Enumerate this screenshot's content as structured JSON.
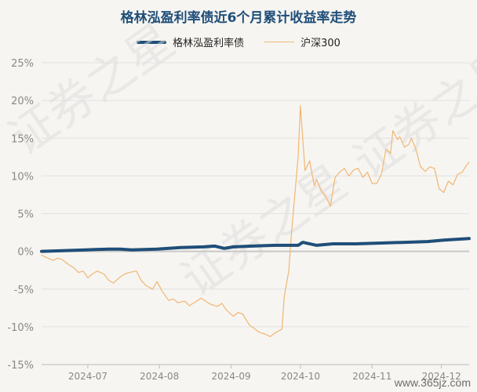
{
  "watermark": {
    "bg_text": "证券之星",
    "corner_text": "www.365jz.com"
  },
  "chart_data": {
    "type": "line",
    "title": "格林泓盈利率债近6个月累计收益率走势",
    "ylim": [
      -15,
      25
    ],
    "ytick_labels": [
      "25%",
      "20%",
      "15%",
      "10%",
      "5%",
      "0%",
      "-5%",
      "-10%",
      "-15%"
    ],
    "yticks": [
      25,
      20,
      15,
      10,
      5,
      0,
      -5,
      -10,
      -15
    ],
    "x_range": [
      "2024-06-11",
      "2024-12-13"
    ],
    "xtick_labels": [
      "2024-07",
      "2024-08",
      "2024-09",
      "2024-10",
      "2024-11",
      "2024-12"
    ],
    "xticks": [
      "2024-07-01",
      "2024-08-01",
      "2024-09-01",
      "2024-10-01",
      "2024-11-01",
      "2024-12-01"
    ],
    "grid": true,
    "legend_position": "top-center",
    "series": [
      {
        "name": "格林泓盈利率债",
        "color": "#1f4e79",
        "points": [
          [
            "2024-06-11",
            0.0
          ],
          [
            "2024-06-20",
            0.1
          ],
          [
            "2024-06-30",
            0.2
          ],
          [
            "2024-07-10",
            0.3
          ],
          [
            "2024-07-15",
            0.3
          ],
          [
            "2024-07-20",
            0.2
          ],
          [
            "2024-07-31",
            0.3
          ],
          [
            "2024-08-10",
            0.5
          ],
          [
            "2024-08-20",
            0.6
          ],
          [
            "2024-08-25",
            0.7
          ],
          [
            "2024-08-29",
            0.4
          ],
          [
            "2024-09-02",
            0.6
          ],
          [
            "2024-09-10",
            0.7
          ],
          [
            "2024-09-20",
            0.8
          ],
          [
            "2024-09-30",
            0.8
          ],
          [
            "2024-10-02",
            1.2
          ],
          [
            "2024-10-08",
            0.8
          ],
          [
            "2024-10-15",
            1.0
          ],
          [
            "2024-10-25",
            1.0
          ],
          [
            "2024-11-05",
            1.1
          ],
          [
            "2024-11-15",
            1.2
          ],
          [
            "2024-11-25",
            1.3
          ],
          [
            "2024-12-02",
            1.5
          ],
          [
            "2024-12-13",
            1.7
          ]
        ]
      },
      {
        "name": "沪深300",
        "color": "#f0b674",
        "points": [
          [
            "2024-06-11",
            -0.5
          ],
          [
            "2024-06-13",
            -0.8
          ],
          [
            "2024-06-16",
            -1.2
          ],
          [
            "2024-06-18",
            -0.9
          ],
          [
            "2024-06-20",
            -1.1
          ],
          [
            "2024-06-22",
            -1.6
          ],
          [
            "2024-06-25",
            -2.2
          ],
          [
            "2024-06-27",
            -2.8
          ],
          [
            "2024-06-29",
            -2.6
          ],
          [
            "2024-07-01",
            -3.5
          ],
          [
            "2024-07-03",
            -3.0
          ],
          [
            "2024-07-05",
            -2.6
          ],
          [
            "2024-07-08",
            -3.0
          ],
          [
            "2024-07-10",
            -3.8
          ],
          [
            "2024-07-12",
            -4.2
          ],
          [
            "2024-07-15",
            -3.4
          ],
          [
            "2024-07-17",
            -3.0
          ],
          [
            "2024-07-19",
            -2.8
          ],
          [
            "2024-07-22",
            -2.6
          ],
          [
            "2024-07-24",
            -3.8
          ],
          [
            "2024-07-26",
            -4.5
          ],
          [
            "2024-07-29",
            -5.0
          ],
          [
            "2024-07-31",
            -4.0
          ],
          [
            "2024-08-02",
            -5.2
          ],
          [
            "2024-08-05",
            -6.5
          ],
          [
            "2024-08-07",
            -6.3
          ],
          [
            "2024-08-09",
            -6.8
          ],
          [
            "2024-08-12",
            -6.6
          ],
          [
            "2024-08-14",
            -7.2
          ],
          [
            "2024-08-16",
            -6.8
          ],
          [
            "2024-08-19",
            -6.2
          ],
          [
            "2024-08-21",
            -6.6
          ],
          [
            "2024-08-23",
            -7.0
          ],
          [
            "2024-08-26",
            -7.3
          ],
          [
            "2024-08-28",
            -6.9
          ],
          [
            "2024-08-30",
            -7.8
          ],
          [
            "2024-09-02",
            -8.6
          ],
          [
            "2024-09-04",
            -8.1
          ],
          [
            "2024-09-06",
            -8.3
          ],
          [
            "2024-09-09",
            -9.8
          ],
          [
            "2024-09-11",
            -10.2
          ],
          [
            "2024-09-13",
            -10.7
          ],
          [
            "2024-09-16",
            -11.0
          ],
          [
            "2024-09-18",
            -11.3
          ],
          [
            "2024-09-20",
            -10.8
          ],
          [
            "2024-09-23",
            -10.3
          ],
          [
            "2024-09-24",
            -6.0
          ],
          [
            "2024-09-26",
            -2.5
          ],
          [
            "2024-09-27",
            2.0
          ],
          [
            "2024-09-30",
            12.5
          ],
          [
            "2024-10-01",
            19.3
          ],
          [
            "2024-10-03",
            10.7
          ],
          [
            "2024-10-05",
            12.0
          ],
          [
            "2024-10-07",
            8.7
          ],
          [
            "2024-10-08",
            9.5
          ],
          [
            "2024-10-10",
            8.0
          ],
          [
            "2024-10-12",
            7.2
          ],
          [
            "2024-10-14",
            6.0
          ],
          [
            "2024-10-16",
            9.8
          ],
          [
            "2024-10-18",
            10.5
          ],
          [
            "2024-10-20",
            11.0
          ],
          [
            "2024-10-22",
            10.0
          ],
          [
            "2024-10-24",
            10.8
          ],
          [
            "2024-10-26",
            11.0
          ],
          [
            "2024-10-28",
            9.8
          ],
          [
            "2024-10-30",
            10.5
          ],
          [
            "2024-11-01",
            9.0
          ],
          [
            "2024-11-03",
            9.0
          ],
          [
            "2024-11-05",
            10.2
          ],
          [
            "2024-11-07",
            13.5
          ],
          [
            "2024-11-09",
            13.0
          ],
          [
            "2024-11-10",
            16.0
          ],
          [
            "2024-11-12",
            14.8
          ],
          [
            "2024-11-13",
            15.2
          ],
          [
            "2024-11-15",
            13.8
          ],
          [
            "2024-11-17",
            14.2
          ],
          [
            "2024-11-18",
            15.0
          ],
          [
            "2024-11-20",
            13.5
          ],
          [
            "2024-11-22",
            11.2
          ],
          [
            "2024-11-24",
            10.6
          ],
          [
            "2024-11-26",
            11.2
          ],
          [
            "2024-11-28",
            11.0
          ],
          [
            "2024-11-30",
            8.3
          ],
          [
            "2024-12-02",
            7.8
          ],
          [
            "2024-12-04",
            9.3
          ],
          [
            "2024-12-06",
            8.8
          ],
          [
            "2024-12-08",
            10.2
          ],
          [
            "2024-12-10",
            10.5
          ],
          [
            "2024-12-12",
            11.5
          ],
          [
            "2024-12-13",
            11.8
          ]
        ]
      }
    ]
  }
}
